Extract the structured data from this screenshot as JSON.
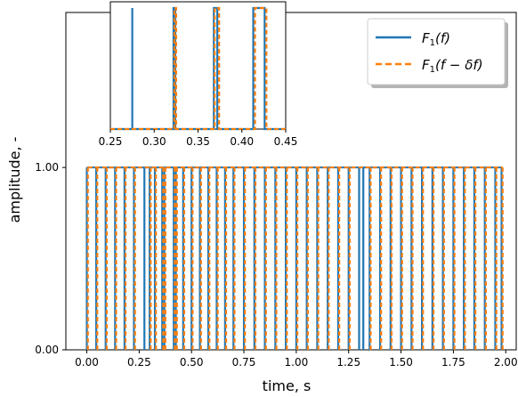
{
  "chart_data": [
    {
      "type": "line",
      "role": "main",
      "xlabel": "time, s",
      "ylabel": "amplitude, -",
      "xlim": [
        -0.1,
        2.05
      ],
      "ylim": [
        0,
        1.85
      ],
      "xticks": [
        "0.00",
        "0.25",
        "0.50",
        "0.75",
        "1.00",
        "1.25",
        "1.50",
        "1.75",
        "2.00"
      ],
      "xtick_values": [
        0,
        0.25,
        0.5,
        0.75,
        1.0,
        1.25,
        1.5,
        1.75,
        2.0
      ],
      "yticks": [
        "0.00",
        "1.00"
      ],
      "ytick_values": [
        0,
        1
      ],
      "grid": false,
      "legend_position": "top-right",
      "series": [
        {
          "label_main": "F",
          "label_sub": "1",
          "label_rest": "(f)",
          "style": "solid",
          "color": "#1f77b4",
          "x": [
            0,
            0.045,
            0.09,
            0.135,
            0.18,
            0.225,
            0.275,
            0.3,
            0.325,
            0.36,
            0.37,
            0.415,
            0.425,
            0.46,
            0.5,
            0.54,
            0.58,
            0.62,
            0.66,
            0.7,
            0.75,
            0.8,
            0.85,
            0.9,
            0.95,
            1.0,
            1.05,
            1.1,
            1.15,
            1.2,
            1.25,
            1.3,
            1.32,
            1.35,
            1.4,
            1.45,
            1.5,
            1.55,
            1.6,
            1.65,
            1.7,
            1.75,
            1.8,
            1.85,
            1.9,
            1.95,
            1.98
          ],
          "y": [
            1,
            1,
            1,
            1,
            1,
            1,
            1,
            1,
            1,
            1,
            1,
            1,
            1,
            1,
            1,
            1,
            1,
            1,
            1,
            1,
            1,
            1,
            1,
            1,
            1,
            1,
            1,
            1,
            1,
            1,
            1,
            1,
            1,
            1,
            1,
            1,
            1,
            1,
            1,
            1,
            1,
            1,
            1,
            1,
            1,
            1,
            1
          ]
        },
        {
          "label_main": "F",
          "label_sub": "1",
          "label_rest": "(f − δf)",
          "style": "dashed",
          "color": "#ff7f0e",
          "x": [
            0.005,
            0.05,
            0.095,
            0.14,
            0.185,
            0.23,
            0.305,
            0.33,
            0.365,
            0.375,
            0.42,
            0.43,
            0.465,
            0.505,
            0.545,
            0.585,
            0.625,
            0.665,
            0.705,
            0.755,
            0.805,
            0.855,
            0.905,
            0.955,
            1.005,
            1.055,
            1.105,
            1.155,
            1.205,
            1.255,
            1.355,
            1.405,
            1.455,
            1.505,
            1.555,
            1.605,
            1.655,
            1.705,
            1.755,
            1.805,
            1.855,
            1.905,
            1.955,
            1.985
          ],
          "y": [
            1,
            1,
            1,
            1,
            1,
            1,
            1,
            1,
            1,
            1,
            1,
            1,
            1,
            1,
            1,
            1,
            1,
            1,
            1,
            1,
            1,
            1,
            1,
            1,
            1,
            1,
            1,
            1,
            1,
            1,
            1,
            1,
            1,
            1,
            1,
            1,
            1,
            1,
            1,
            1,
            1,
            1,
            1,
            1
          ]
        }
      ]
    },
    {
      "type": "line",
      "role": "inset",
      "xlim": [
        0.25,
        0.45
      ],
      "ylim": [
        0,
        1
      ],
      "xticks": [
        "0.25",
        "0.30",
        "0.35",
        "0.40",
        "0.45"
      ],
      "xtick_values": [
        0.25,
        0.3,
        0.35,
        0.4,
        0.45
      ],
      "series": [
        {
          "style": "solid",
          "color": "#1f77b4",
          "pulses": [
            [
              0.275,
              0.275
            ],
            [
              0.322,
              0.324
            ],
            [
              0.368,
              0.372
            ],
            [
              0.413,
              0.426
            ]
          ]
        },
        {
          "style": "dashed",
          "color": "#ff7f0e",
          "pulses": [
            [
              0.323,
              0.325
            ],
            [
              0.369,
              0.374
            ],
            [
              0.415,
              0.428
            ]
          ]
        }
      ]
    }
  ]
}
